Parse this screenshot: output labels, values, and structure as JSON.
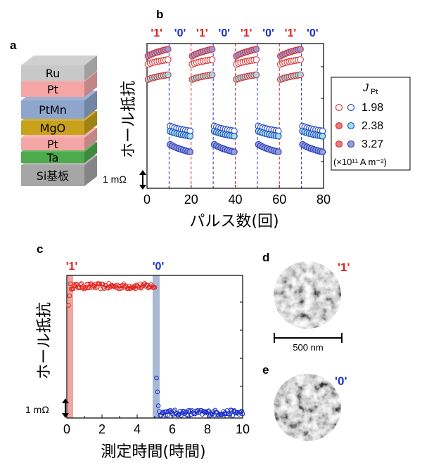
{
  "panels": {
    "a": {
      "label": "a",
      "layers": [
        {
          "name": "Ru",
          "color": "#c8c8c8"
        },
        {
          "name": "Pt",
          "color": "#f4a6a6"
        },
        {
          "name": "PtMn",
          "color": "#8fa6cc"
        },
        {
          "name": "MgO",
          "color": "#c9a21c"
        },
        {
          "name": "Pt",
          "color": "#f4a6a6"
        },
        {
          "name": "Ta",
          "color": "#4dab4d"
        },
        {
          "name": "Si基板",
          "color": "#a6a6a6"
        }
      ]
    },
    "b": {
      "label": "b"
    },
    "c": {
      "label": "c"
    },
    "d": {
      "label": "d",
      "state": "'1'"
    },
    "e": {
      "label": "e",
      "state": "'0'"
    },
    "scalebar": "500 nm"
  },
  "colors": {
    "state1": "#e0201c",
    "state0": "#1a2fc8",
    "red_marker": "#e87a7a",
    "cyan_marker": "#9be0e8",
    "blue_marker": "#9a9ad8"
  },
  "chart_data": [
    {
      "type": "scatter",
      "panel": "b",
      "xlabel": "パルス数(回)",
      "ylabel": "ホール抵抗",
      "xlim": [
        0,
        80
      ],
      "x_ticks": [
        "0",
        "20",
        "40",
        "60",
        "80"
      ],
      "scale_label": "1 mΩ",
      "state_labels": [
        "'1'",
        "'0'",
        "'1'",
        "'0'",
        "'1'",
        "'0'",
        "'1'",
        "'0'"
      ],
      "switch_positions": [
        0,
        10,
        20,
        30,
        40,
        50,
        60,
        70,
        80
      ],
      "legend": {
        "title": "J",
        "title_sub": "Pt",
        "unit": "(×10¹¹ A m⁻²)",
        "entries": [
          "1.98",
          "2.38",
          "3.27"
        ]
      },
      "series": [
        {
          "name": "1.98",
          "high_level": 2.2,
          "low_level": -0.55,
          "amplitude": 0.12
        },
        {
          "name": "2.38",
          "high_level": 1.6,
          "low_level": -0.75,
          "amplitude": 0.12
        },
        {
          "name": "3.27",
          "high_level": 2.6,
          "low_level": -1.35,
          "amplitude": 0.18
        }
      ]
    },
    {
      "type": "scatter",
      "panel": "c",
      "xlabel": "測定時間(時間)",
      "ylabel": "ホール抵抗",
      "xlim": [
        0,
        10
      ],
      "x_ticks": [
        "0",
        "2",
        "4",
        "6",
        "8",
        "10"
      ],
      "scale_label": "1 mΩ",
      "state_labels": [
        "'1'",
        "'0'"
      ],
      "switch_times": [
        0,
        5
      ],
      "segments": [
        {
          "state": "'1'",
          "t_start": 0.1,
          "t_end": 5.0,
          "level": 0.95
        },
        {
          "state": "'0'",
          "t_start": 5.1,
          "t_end": 10.0,
          "level": -1.05
        }
      ]
    }
  ]
}
